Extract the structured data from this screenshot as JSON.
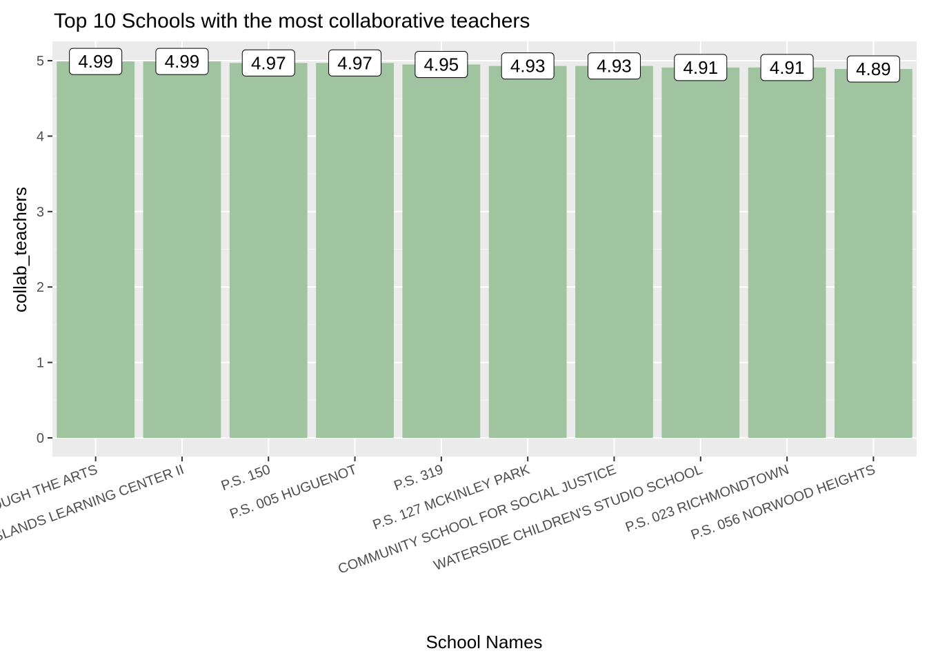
{
  "chart_data": {
    "type": "bar",
    "title": "Top 10 Schools with the most collaborative teachers",
    "xlabel": "School Names",
    "ylabel": "collab_teachers",
    "ylim": [
      0,
      5.2
    ],
    "yticks": [
      0,
      1,
      2,
      3,
      4,
      5
    ],
    "grid": true,
    "legend": "none",
    "categories": [
      "DISCOVERY THROUGH THE ARTS",
      "THE ISLANDS LEARNING CENTER II",
      "P.S. 150",
      "P.S. 005 HUGUENOT",
      "P.S. 319",
      "P.S. 127 MCKINLEY PARK",
      "COMMUNITY SCHOOL FOR SOCIAL JUSTICE",
      "WATERSIDE CHILDREN'S STUDIO SCHOOL",
      "P.S. 023 RICHMONDTOWN",
      "P.S. 056 NORWOOD HEIGHTS"
    ],
    "values": [
      4.99,
      4.99,
      4.97,
      4.97,
      4.95,
      4.93,
      4.93,
      4.91,
      4.91,
      4.89
    ],
    "data_labels": [
      "4.99",
      "4.99",
      "4.97",
      "4.97",
      "4.95",
      "4.93",
      "4.93",
      "4.91",
      "4.91",
      "4.89"
    ],
    "colors": {
      "bar": "#9fc49f",
      "panel": "#ebebeb",
      "grid_major": "#ffffff",
      "grid_minor": "#f5f5f5",
      "label_border": "#000000"
    }
  }
}
